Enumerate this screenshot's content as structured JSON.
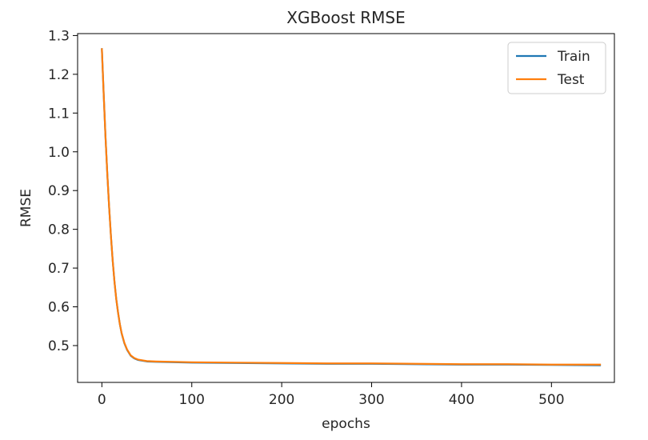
{
  "chart_data": {
    "type": "line",
    "title": "XGBoost RMSE",
    "xlabel": "epochs",
    "ylabel": "RMSE",
    "xlim": [
      -27,
      570
    ],
    "ylim": [
      0.405,
      1.305
    ],
    "xticks": [
      0,
      100,
      200,
      300,
      400,
      500
    ],
    "yticks": [
      0.5,
      0.6,
      0.7,
      0.8,
      0.9,
      1.0,
      1.1,
      1.2,
      1.3
    ],
    "ytick_labels": [
      "0.5",
      "0.6",
      "0.7",
      "0.8",
      "0.9",
      "1.0",
      "1.1",
      "1.2",
      "1.3"
    ],
    "grid": false,
    "legend_position": "top-right",
    "series": [
      {
        "name": "Train",
        "color": "#1f77b4",
        "x": [
          0,
          2,
          4,
          6,
          8,
          10,
          12,
          14,
          16,
          18,
          20,
          22,
          25,
          28,
          32,
          36,
          40,
          50,
          60,
          80,
          100,
          150,
          200,
          250,
          300,
          350,
          400,
          450,
          500,
          554
        ],
        "y": [
          1.265,
          1.15,
          1.04,
          0.945,
          0.86,
          0.785,
          0.72,
          0.665,
          0.62,
          0.585,
          0.555,
          0.531,
          0.506,
          0.489,
          0.474,
          0.467,
          0.463,
          0.459,
          0.458,
          0.457,
          0.456,
          0.455,
          0.454,
          0.453,
          0.453,
          0.452,
          0.451,
          0.451,
          0.45,
          0.449
        ]
      },
      {
        "name": "Test",
        "color": "#ff7f0e",
        "x": [
          0,
          2,
          4,
          6,
          8,
          10,
          12,
          14,
          16,
          18,
          20,
          22,
          25,
          28,
          32,
          36,
          40,
          50,
          60,
          80,
          100,
          150,
          200,
          250,
          300,
          350,
          400,
          450,
          500,
          554
        ],
        "y": [
          1.265,
          1.15,
          1.04,
          0.945,
          0.86,
          0.785,
          0.72,
          0.665,
          0.62,
          0.585,
          0.555,
          0.532,
          0.507,
          0.49,
          0.475,
          0.468,
          0.464,
          0.46,
          0.459,
          0.458,
          0.457,
          0.456,
          0.455,
          0.454,
          0.454,
          0.453,
          0.452,
          0.452,
          0.451,
          0.451
        ]
      }
    ]
  }
}
